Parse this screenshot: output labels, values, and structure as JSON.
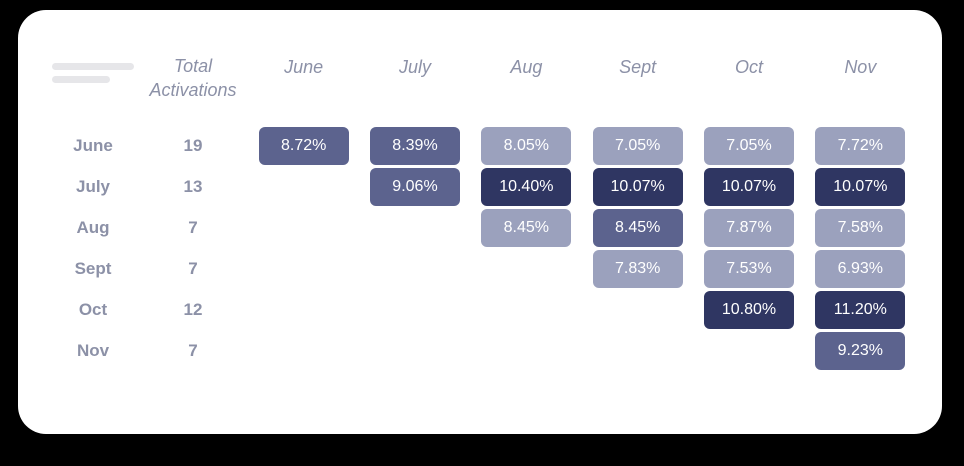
{
  "chart_data": {
    "type": "heatmap",
    "columns": [
      "June",
      "July",
      "Aug",
      "Sept",
      "Oct",
      "Nov"
    ],
    "total_header": "Total Activations",
    "rows": [
      {
        "label": "June",
        "total": "19",
        "cells": [
          {
            "col": 0,
            "value": "8.72%",
            "shade": "medium"
          },
          {
            "col": 1,
            "value": "8.39%",
            "shade": "medium"
          },
          {
            "col": 2,
            "value": "8.05%",
            "shade": "light"
          },
          {
            "col": 3,
            "value": "7.05%",
            "shade": "light"
          },
          {
            "col": 4,
            "value": "7.05%",
            "shade": "light"
          },
          {
            "col": 5,
            "value": "7.72%",
            "shade": "light"
          }
        ]
      },
      {
        "label": "July",
        "total": "13",
        "cells": [
          {
            "col": 1,
            "value": "9.06%",
            "shade": "medium"
          },
          {
            "col": 2,
            "value": "10.40%",
            "shade": "dark"
          },
          {
            "col": 3,
            "value": "10.07%",
            "shade": "dark"
          },
          {
            "col": 4,
            "value": "10.07%",
            "shade": "dark"
          },
          {
            "col": 5,
            "value": "10.07%",
            "shade": "dark"
          }
        ]
      },
      {
        "label": "Aug",
        "total": "7",
        "cells": [
          {
            "col": 2,
            "value": "8.45%",
            "shade": "light"
          },
          {
            "col": 3,
            "value": "8.45%",
            "shade": "medium"
          },
          {
            "col": 4,
            "value": "7.87%",
            "shade": "light"
          },
          {
            "col": 5,
            "value": "7.58%",
            "shade": "light"
          }
        ]
      },
      {
        "label": "Sept",
        "total": "7",
        "cells": [
          {
            "col": 3,
            "value": "7.83%",
            "shade": "light"
          },
          {
            "col": 4,
            "value": "7.53%",
            "shade": "light"
          },
          {
            "col": 5,
            "value": "6.93%",
            "shade": "light"
          }
        ]
      },
      {
        "label": "Oct",
        "total": "12",
        "cells": [
          {
            "col": 4,
            "value": "10.80%",
            "shade": "dark"
          },
          {
            "col": 5,
            "value": "11.20%",
            "shade": "dark"
          }
        ]
      },
      {
        "label": "Nov",
        "total": "7",
        "cells": [
          {
            "col": 5,
            "value": "9.23%",
            "shade": "medium"
          }
        ]
      }
    ]
  },
  "colors": {
    "page_bg": "#000000",
    "card_bg": "#FFFFFF",
    "text_muted": "#8C91A7",
    "cell_text": "#FFFFFF",
    "cell_light": "#9BA1BD",
    "cell_medium": "#5C638E",
    "cell_dark": "#2F3662",
    "skeleton": "#E6E6E9"
  }
}
